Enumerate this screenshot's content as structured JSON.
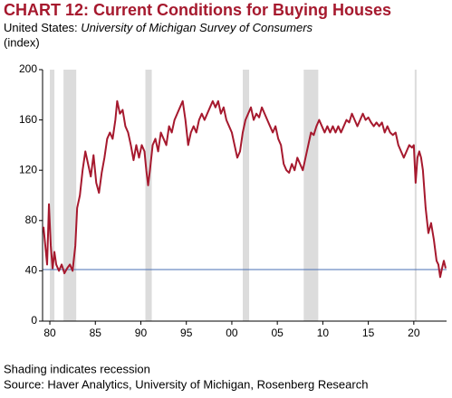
{
  "chart_data": {
    "type": "line",
    "title": "CHART 12: Current Conditions for Buying Houses",
    "region": "United States:",
    "survey": "University of Michigan Survey of Consumers",
    "y_label": "(index)",
    "note": "Shading indicates recession",
    "source": "Source: Haver Analytics, University of Michigan, Rosenberg Research",
    "xlim": [
      1979.2,
      2023.6
    ],
    "ylim": [
      0,
      200
    ],
    "xticks": [
      {
        "value": 1980,
        "label": "80"
      },
      {
        "value": 1985,
        "label": "85"
      },
      {
        "value": 1990,
        "label": "90"
      },
      {
        "value": 1995,
        "label": "95"
      },
      {
        "value": 2000,
        "label": "00"
      },
      {
        "value": 2005,
        "label": "05"
      },
      {
        "value": 2010,
        "label": "10"
      },
      {
        "value": 2015,
        "label": "15"
      },
      {
        "value": 2020,
        "label": "20"
      }
    ],
    "yticks": [
      0,
      40,
      80,
      120,
      160,
      200
    ],
    "recessions": [
      [
        1980.0,
        1980.5
      ],
      [
        1981.5,
        1982.9
      ],
      [
        1990.5,
        1991.2
      ],
      [
        2001.2,
        2001.9
      ],
      [
        2007.9,
        2009.5
      ],
      [
        2020.1,
        2020.3
      ]
    ],
    "recession_color": "#dcdcdc",
    "reference_line": 41,
    "reference_color": "#4a6fb5",
    "series": [
      {
        "color": "#a6192e",
        "x": [
          1979.3,
          1979.5,
          1979.7,
          1979.9,
          1980.1,
          1980.3,
          1980.5,
          1980.7,
          1981.0,
          1981.3,
          1981.6,
          1981.9,
          1982.2,
          1982.5,
          1982.8,
          1983.0,
          1983.3,
          1983.6,
          1983.9,
          1984.2,
          1984.5,
          1984.8,
          1985.1,
          1985.4,
          1985.7,
          1986.0,
          1986.3,
          1986.6,
          1986.9,
          1987.2,
          1987.4,
          1987.7,
          1988.0,
          1988.3,
          1988.6,
          1988.9,
          1989.2,
          1989.5,
          1989.8,
          1990.1,
          1990.4,
          1990.6,
          1990.8,
          1991.0,
          1991.3,
          1991.6,
          1991.9,
          1992.2,
          1992.5,
          1992.8,
          1993.1,
          1993.4,
          1993.7,
          1994.0,
          1994.3,
          1994.6,
          1994.9,
          1995.2,
          1995.5,
          1995.8,
          1996.1,
          1996.4,
          1996.7,
          1997.0,
          1997.3,
          1997.6,
          1997.9,
          1998.2,
          1998.5,
          1998.8,
          1999.1,
          1999.4,
          1999.7,
          2000.0,
          2000.3,
          2000.6,
          2000.9,
          2001.2,
          2001.5,
          2001.8,
          2002.1,
          2002.4,
          2002.7,
          2003.0,
          2003.3,
          2003.6,
          2003.9,
          2004.2,
          2004.5,
          2004.8,
          2005.1,
          2005.4,
          2005.7,
          2006.0,
          2006.3,
          2006.6,
          2006.9,
          2007.2,
          2007.5,
          2007.8,
          2008.1,
          2008.4,
          2008.7,
          2009.0,
          2009.3,
          2009.6,
          2009.9,
          2010.2,
          2010.5,
          2010.8,
          2011.1,
          2011.4,
          2011.7,
          2012.0,
          2012.3,
          2012.6,
          2012.9,
          2013.2,
          2013.5,
          2013.8,
          2014.1,
          2014.4,
          2014.7,
          2015.0,
          2015.3,
          2015.6,
          2015.9,
          2016.2,
          2016.5,
          2016.8,
          2017.1,
          2017.4,
          2017.7,
          2018.0,
          2018.3,
          2018.6,
          2018.9,
          2019.2,
          2019.5,
          2019.8,
          2020.0,
          2020.2,
          2020.4,
          2020.6,
          2020.8,
          2021.0,
          2021.3,
          2021.6,
          2021.9,
          2022.2,
          2022.5,
          2022.7,
          2022.9,
          2023.1,
          2023.3,
          2023.5
        ],
        "values": [
          75,
          60,
          45,
          93,
          60,
          42,
          55,
          45,
          40,
          45,
          38,
          42,
          45,
          40,
          60,
          90,
          100,
          120,
          135,
          125,
          115,
          132,
          110,
          102,
          118,
          130,
          145,
          150,
          145,
          160,
          175,
          165,
          168,
          155,
          150,
          140,
          128,
          140,
          130,
          140,
          135,
          120,
          108,
          120,
          140,
          145,
          135,
          150,
          145,
          140,
          155,
          150,
          160,
          165,
          170,
          175,
          160,
          140,
          150,
          155,
          150,
          160,
          165,
          160,
          165,
          170,
          175,
          170,
          175,
          165,
          170,
          160,
          155,
          150,
          140,
          130,
          135,
          150,
          160,
          165,
          170,
          160,
          165,
          162,
          170,
          165,
          160,
          155,
          150,
          155,
          145,
          140,
          125,
          120,
          118,
          125,
          120,
          130,
          125,
          120,
          130,
          140,
          150,
          148,
          155,
          160,
          155,
          150,
          155,
          150,
          155,
          150,
          155,
          150,
          155,
          160,
          158,
          165,
          160,
          155,
          160,
          165,
          160,
          162,
          158,
          155,
          158,
          155,
          158,
          150,
          155,
          150,
          148,
          150,
          140,
          135,
          130,
          135,
          140,
          138,
          140,
          110,
          130,
          135,
          130,
          120,
          90,
          70,
          78,
          65,
          48,
          45,
          35,
          42,
          48,
          42
        ]
      }
    ]
  }
}
